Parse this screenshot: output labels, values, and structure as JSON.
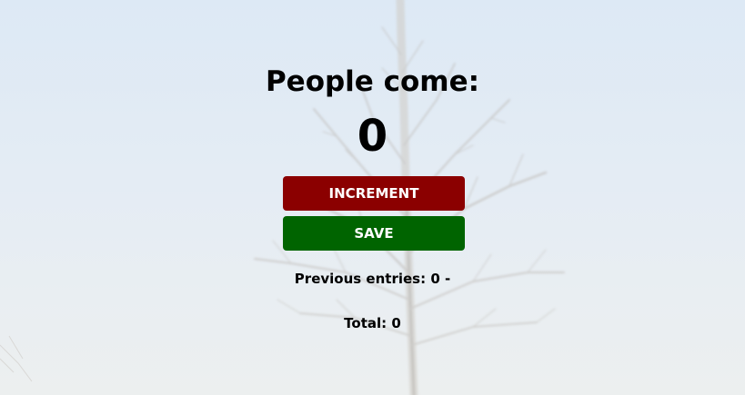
{
  "header": {
    "title": "People come:"
  },
  "counter": {
    "value": "0"
  },
  "buttons": {
    "increment_label": "INCREMENT",
    "save_label": "SAVE"
  },
  "entries": {
    "label": "Previous entries:",
    "value": "0 -"
  },
  "total": {
    "label": "Total:",
    "value": "0"
  },
  "colors": {
    "increment": "#8b0000",
    "save": "#006400",
    "sky": "#dde9f5"
  }
}
